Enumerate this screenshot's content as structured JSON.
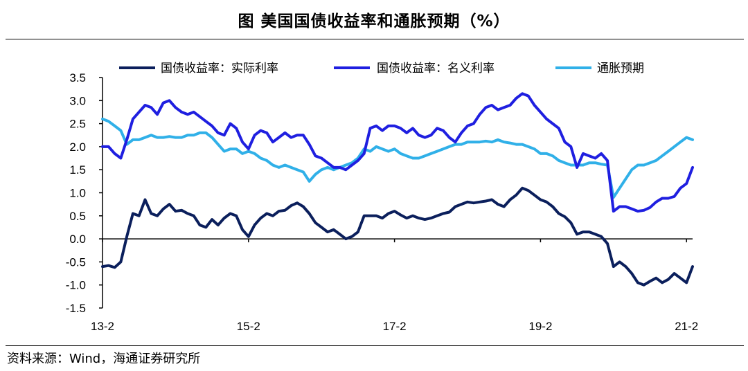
{
  "title": "图  美国国债收益率和通胀预期（%）",
  "source": "资料来源：Wind，海通证券研究所",
  "chart_data": {
    "type": "line",
    "title": "图  美国国债收益率和通胀预期（%）",
    "xlabel": "",
    "ylabel": "",
    "ylim": [
      -1.5,
      3.5
    ],
    "yticks": [
      "3.5",
      "3.0",
      "2.5",
      "2.0",
      "1.5",
      "1.0",
      "0.5",
      "0.0",
      "-0.5",
      "-1.0",
      "-1.5"
    ],
    "ytick_values": [
      3.5,
      3.0,
      2.5,
      2.0,
      1.5,
      1.0,
      0.5,
      0.0,
      -0.5,
      -1.0,
      -1.5
    ],
    "xticks": [
      "13-2",
      "15-2",
      "17-2",
      "19-2",
      "21-2"
    ],
    "xtick_months": [
      0,
      24,
      48,
      72,
      96
    ],
    "x_range_months": [
      0,
      97
    ],
    "legend": {
      "position": "top"
    },
    "series": [
      {
        "name": "国债收益率：实际利率",
        "color": "#0b1f5c",
        "points": [
          [
            0,
            -0.6
          ],
          [
            1,
            -0.58
          ],
          [
            2,
            -0.62
          ],
          [
            3,
            -0.5
          ],
          [
            4,
            0.05
          ],
          [
            5,
            0.55
          ],
          [
            6,
            0.5
          ],
          [
            7,
            0.85
          ],
          [
            8,
            0.55
          ],
          [
            9,
            0.5
          ],
          [
            10,
            0.65
          ],
          [
            11,
            0.75
          ],
          [
            12,
            0.6
          ],
          [
            13,
            0.62
          ],
          [
            14,
            0.55
          ],
          [
            15,
            0.5
          ],
          [
            16,
            0.3
          ],
          [
            17,
            0.25
          ],
          [
            18,
            0.42
          ],
          [
            19,
            0.3
          ],
          [
            20,
            0.45
          ],
          [
            21,
            0.55
          ],
          [
            22,
            0.5
          ],
          [
            23,
            0.2
          ],
          [
            24,
            0.05
          ],
          [
            25,
            0.3
          ],
          [
            26,
            0.45
          ],
          [
            27,
            0.55
          ],
          [
            28,
            0.5
          ],
          [
            29,
            0.6
          ],
          [
            30,
            0.62
          ],
          [
            31,
            0.72
          ],
          [
            32,
            0.78
          ],
          [
            33,
            0.7
          ],
          [
            34,
            0.55
          ],
          [
            35,
            0.35
          ],
          [
            36,
            0.25
          ],
          [
            37,
            0.15
          ],
          [
            38,
            0.2
          ],
          [
            39,
            0.1
          ],
          [
            40,
            0.0
          ],
          [
            41,
            0.05
          ],
          [
            42,
            0.15
          ],
          [
            43,
            0.5
          ],
          [
            44,
            0.5
          ],
          [
            45,
            0.5
          ],
          [
            46,
            0.45
          ],
          [
            47,
            0.55
          ],
          [
            48,
            0.6
          ],
          [
            49,
            0.52
          ],
          [
            50,
            0.45
          ],
          [
            51,
            0.5
          ],
          [
            52,
            0.45
          ],
          [
            53,
            0.42
          ],
          [
            54,
            0.45
          ],
          [
            55,
            0.5
          ],
          [
            56,
            0.55
          ],
          [
            57,
            0.58
          ],
          [
            58,
            0.7
          ],
          [
            59,
            0.75
          ],
          [
            60,
            0.8
          ],
          [
            61,
            0.78
          ],
          [
            62,
            0.8
          ],
          [
            63,
            0.82
          ],
          [
            64,
            0.85
          ],
          [
            65,
            0.75
          ],
          [
            66,
            0.7
          ],
          [
            67,
            0.85
          ],
          [
            68,
            0.95
          ],
          [
            69,
            1.1
          ],
          [
            70,
            1.05
          ],
          [
            71,
            0.95
          ],
          [
            72,
            0.85
          ],
          [
            73,
            0.8
          ],
          [
            74,
            0.7
          ],
          [
            75,
            0.55
          ],
          [
            76,
            0.48
          ],
          [
            77,
            0.35
          ],
          [
            78,
            0.1
          ],
          [
            79,
            0.15
          ],
          [
            80,
            0.15
          ],
          [
            81,
            0.1
          ],
          [
            82,
            0.05
          ],
          [
            83,
            -0.1
          ],
          [
            84,
            -0.6
          ],
          [
            85,
            -0.5
          ],
          [
            86,
            -0.6
          ],
          [
            87,
            -0.75
          ],
          [
            88,
            -0.95
          ],
          [
            89,
            -1.0
          ],
          [
            90,
            -0.92
          ],
          [
            91,
            -0.85
          ],
          [
            92,
            -0.95
          ],
          [
            93,
            -0.88
          ],
          [
            94,
            -0.75
          ],
          [
            95,
            -0.85
          ],
          [
            96,
            -0.95
          ],
          [
            97,
            -0.6
          ]
        ]
      },
      {
        "name": "国债收益率：名义利率",
        "color": "#1f1fe0",
        "points": [
          [
            0,
            2.0
          ],
          [
            1,
            2.0
          ],
          [
            2,
            1.85
          ],
          [
            3,
            1.75
          ],
          [
            4,
            2.15
          ],
          [
            5,
            2.6
          ],
          [
            6,
            2.75
          ],
          [
            7,
            2.9
          ],
          [
            8,
            2.85
          ],
          [
            9,
            2.7
          ],
          [
            10,
            2.95
          ],
          [
            11,
            3.0
          ],
          [
            12,
            2.85
          ],
          [
            13,
            2.75
          ],
          [
            14,
            2.7
          ],
          [
            15,
            2.75
          ],
          [
            16,
            2.65
          ],
          [
            17,
            2.55
          ],
          [
            18,
            2.45
          ],
          [
            19,
            2.3
          ],
          [
            20,
            2.25
          ],
          [
            21,
            2.5
          ],
          [
            22,
            2.4
          ],
          [
            23,
            2.1
          ],
          [
            24,
            1.95
          ],
          [
            25,
            2.25
          ],
          [
            26,
            2.35
          ],
          [
            27,
            2.3
          ],
          [
            28,
            2.1
          ],
          [
            29,
            2.2
          ],
          [
            30,
            2.3
          ],
          [
            31,
            2.2
          ],
          [
            32,
            2.25
          ],
          [
            33,
            2.25
          ],
          [
            34,
            2.05
          ],
          [
            35,
            1.8
          ],
          [
            36,
            1.75
          ],
          [
            37,
            1.65
          ],
          [
            38,
            1.55
          ],
          [
            39,
            1.55
          ],
          [
            40,
            1.5
          ],
          [
            41,
            1.6
          ],
          [
            42,
            1.7
          ],
          [
            43,
            1.85
          ],
          [
            44,
            2.4
          ],
          [
            45,
            2.45
          ],
          [
            46,
            2.35
          ],
          [
            47,
            2.45
          ],
          [
            48,
            2.45
          ],
          [
            49,
            2.4
          ],
          [
            50,
            2.3
          ],
          [
            51,
            2.4
          ],
          [
            52,
            2.25
          ],
          [
            53,
            2.2
          ],
          [
            54,
            2.25
          ],
          [
            55,
            2.4
          ],
          [
            56,
            2.35
          ],
          [
            57,
            2.2
          ],
          [
            58,
            2.1
          ],
          [
            59,
            2.3
          ],
          [
            60,
            2.45
          ],
          [
            61,
            2.5
          ],
          [
            62,
            2.7
          ],
          [
            63,
            2.85
          ],
          [
            64,
            2.9
          ],
          [
            65,
            2.8
          ],
          [
            66,
            2.85
          ],
          [
            67,
            2.9
          ],
          [
            68,
            3.05
          ],
          [
            69,
            3.15
          ],
          [
            70,
            3.1
          ],
          [
            71,
            2.9
          ],
          [
            72,
            2.75
          ],
          [
            73,
            2.6
          ],
          [
            74,
            2.5
          ],
          [
            75,
            2.4
          ],
          [
            76,
            2.1
          ],
          [
            77,
            2.0
          ],
          [
            78,
            1.55
          ],
          [
            79,
            1.85
          ],
          [
            80,
            1.8
          ],
          [
            81,
            1.75
          ],
          [
            82,
            1.85
          ],
          [
            83,
            1.7
          ],
          [
            84,
            0.6
          ],
          [
            85,
            0.7
          ],
          [
            86,
            0.7
          ],
          [
            87,
            0.65
          ],
          [
            88,
            0.6
          ],
          [
            89,
            0.62
          ],
          [
            90,
            0.68
          ],
          [
            91,
            0.8
          ],
          [
            92,
            0.88
          ],
          [
            93,
            0.88
          ],
          [
            94,
            0.92
          ],
          [
            95,
            1.1
          ],
          [
            96,
            1.2
          ],
          [
            97,
            1.55
          ]
        ]
      },
      {
        "name": "通胀预期",
        "color": "#30b0e8",
        "points": [
          [
            0,
            2.6
          ],
          [
            1,
            2.55
          ],
          [
            2,
            2.45
          ],
          [
            3,
            2.35
          ],
          [
            4,
            2.05
          ],
          [
            5,
            2.15
          ],
          [
            6,
            2.15
          ],
          [
            7,
            2.2
          ],
          [
            8,
            2.25
          ],
          [
            9,
            2.2
          ],
          [
            10,
            2.2
          ],
          [
            11,
            2.22
          ],
          [
            12,
            2.2
          ],
          [
            13,
            2.2
          ],
          [
            14,
            2.25
          ],
          [
            15,
            2.25
          ],
          [
            16,
            2.3
          ],
          [
            17,
            2.3
          ],
          [
            18,
            2.2
          ],
          [
            19,
            2.05
          ],
          [
            20,
            1.9
          ],
          [
            21,
            1.95
          ],
          [
            22,
            1.95
          ],
          [
            23,
            1.85
          ],
          [
            24,
            1.9
          ],
          [
            25,
            1.85
          ],
          [
            26,
            1.75
          ],
          [
            27,
            1.7
          ],
          [
            28,
            1.6
          ],
          [
            29,
            1.55
          ],
          [
            30,
            1.6
          ],
          [
            31,
            1.55
          ],
          [
            32,
            1.5
          ],
          [
            33,
            1.45
          ],
          [
            34,
            1.25
          ],
          [
            35,
            1.4
          ],
          [
            36,
            1.5
          ],
          [
            37,
            1.55
          ],
          [
            38,
            1.5
          ],
          [
            39,
            1.55
          ],
          [
            40,
            1.6
          ],
          [
            41,
            1.65
          ],
          [
            42,
            1.75
          ],
          [
            43,
            1.95
          ],
          [
            44,
            1.9
          ],
          [
            45,
            2.0
          ],
          [
            46,
            1.95
          ],
          [
            47,
            1.9
          ],
          [
            48,
            1.95
          ],
          [
            49,
            1.85
          ],
          [
            50,
            1.8
          ],
          [
            51,
            1.75
          ],
          [
            52,
            1.75
          ],
          [
            53,
            1.8
          ],
          [
            54,
            1.85
          ],
          [
            55,
            1.9
          ],
          [
            56,
            1.95
          ],
          [
            57,
            2.0
          ],
          [
            58,
            2.05
          ],
          [
            59,
            2.05
          ],
          [
            60,
            2.1
          ],
          [
            61,
            2.1
          ],
          [
            62,
            2.1
          ],
          [
            63,
            2.12
          ],
          [
            64,
            2.1
          ],
          [
            65,
            2.15
          ],
          [
            66,
            2.1
          ],
          [
            67,
            2.08
          ],
          [
            68,
            2.05
          ],
          [
            69,
            2.05
          ],
          [
            70,
            2.0
          ],
          [
            71,
            1.95
          ],
          [
            72,
            1.85
          ],
          [
            73,
            1.85
          ],
          [
            74,
            1.8
          ],
          [
            75,
            1.7
          ],
          [
            76,
            1.65
          ],
          [
            77,
            1.6
          ],
          [
            78,
            1.6
          ],
          [
            79,
            1.6
          ],
          [
            80,
            1.65
          ],
          [
            81,
            1.65
          ],
          [
            82,
            1.62
          ],
          [
            83,
            1.6
          ],
          [
            84,
            0.9
          ],
          [
            85,
            1.1
          ],
          [
            86,
            1.3
          ],
          [
            87,
            1.5
          ],
          [
            88,
            1.6
          ],
          [
            89,
            1.6
          ],
          [
            90,
            1.65
          ],
          [
            91,
            1.7
          ],
          [
            92,
            1.8
          ],
          [
            93,
            1.9
          ],
          [
            94,
            2.0
          ],
          [
            95,
            2.1
          ],
          [
            96,
            2.2
          ],
          [
            97,
            2.15
          ]
        ]
      }
    ]
  }
}
